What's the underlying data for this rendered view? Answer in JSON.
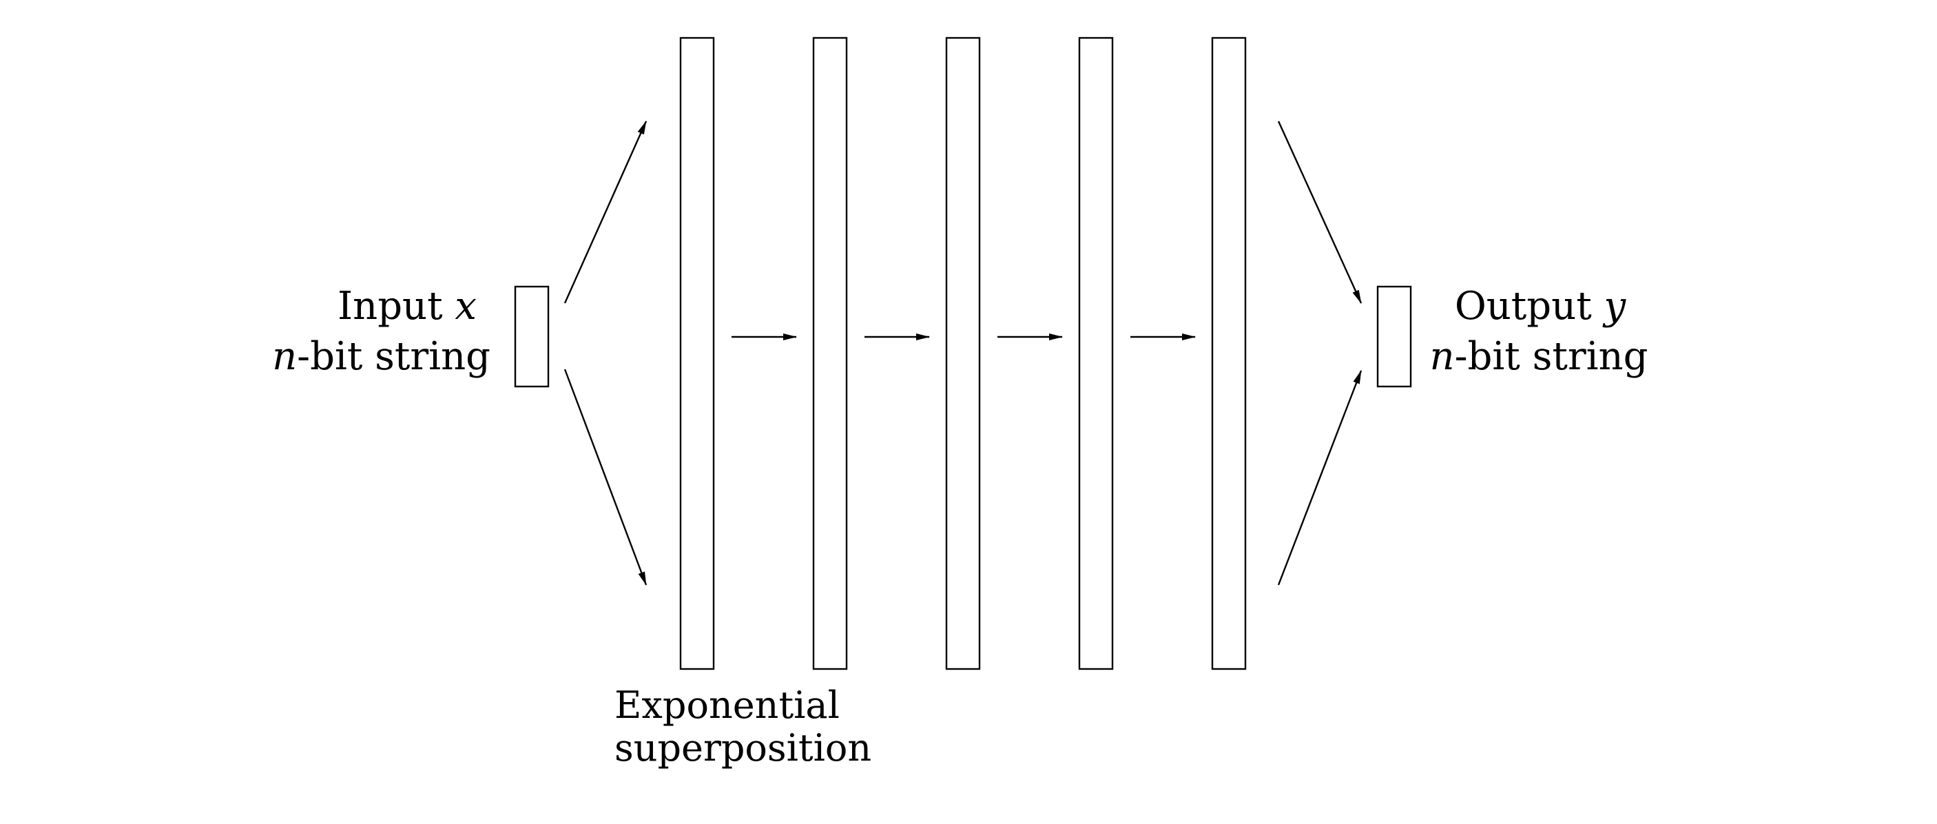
{
  "input": {
    "title_prefix": "Input ",
    "variable": "x",
    "subtitle_var": "n",
    "subtitle_rest": "-bit string"
  },
  "output": {
    "title_prefix": "Output ",
    "variable": "y",
    "subtitle_var": "n",
    "subtitle_rest": "-bit string"
  },
  "caption": {
    "line1": "Exponential",
    "line2": "superposition"
  },
  "stages": {
    "count": 5
  },
  "colors": {
    "stroke": "#000000",
    "background": "#ffffff"
  }
}
